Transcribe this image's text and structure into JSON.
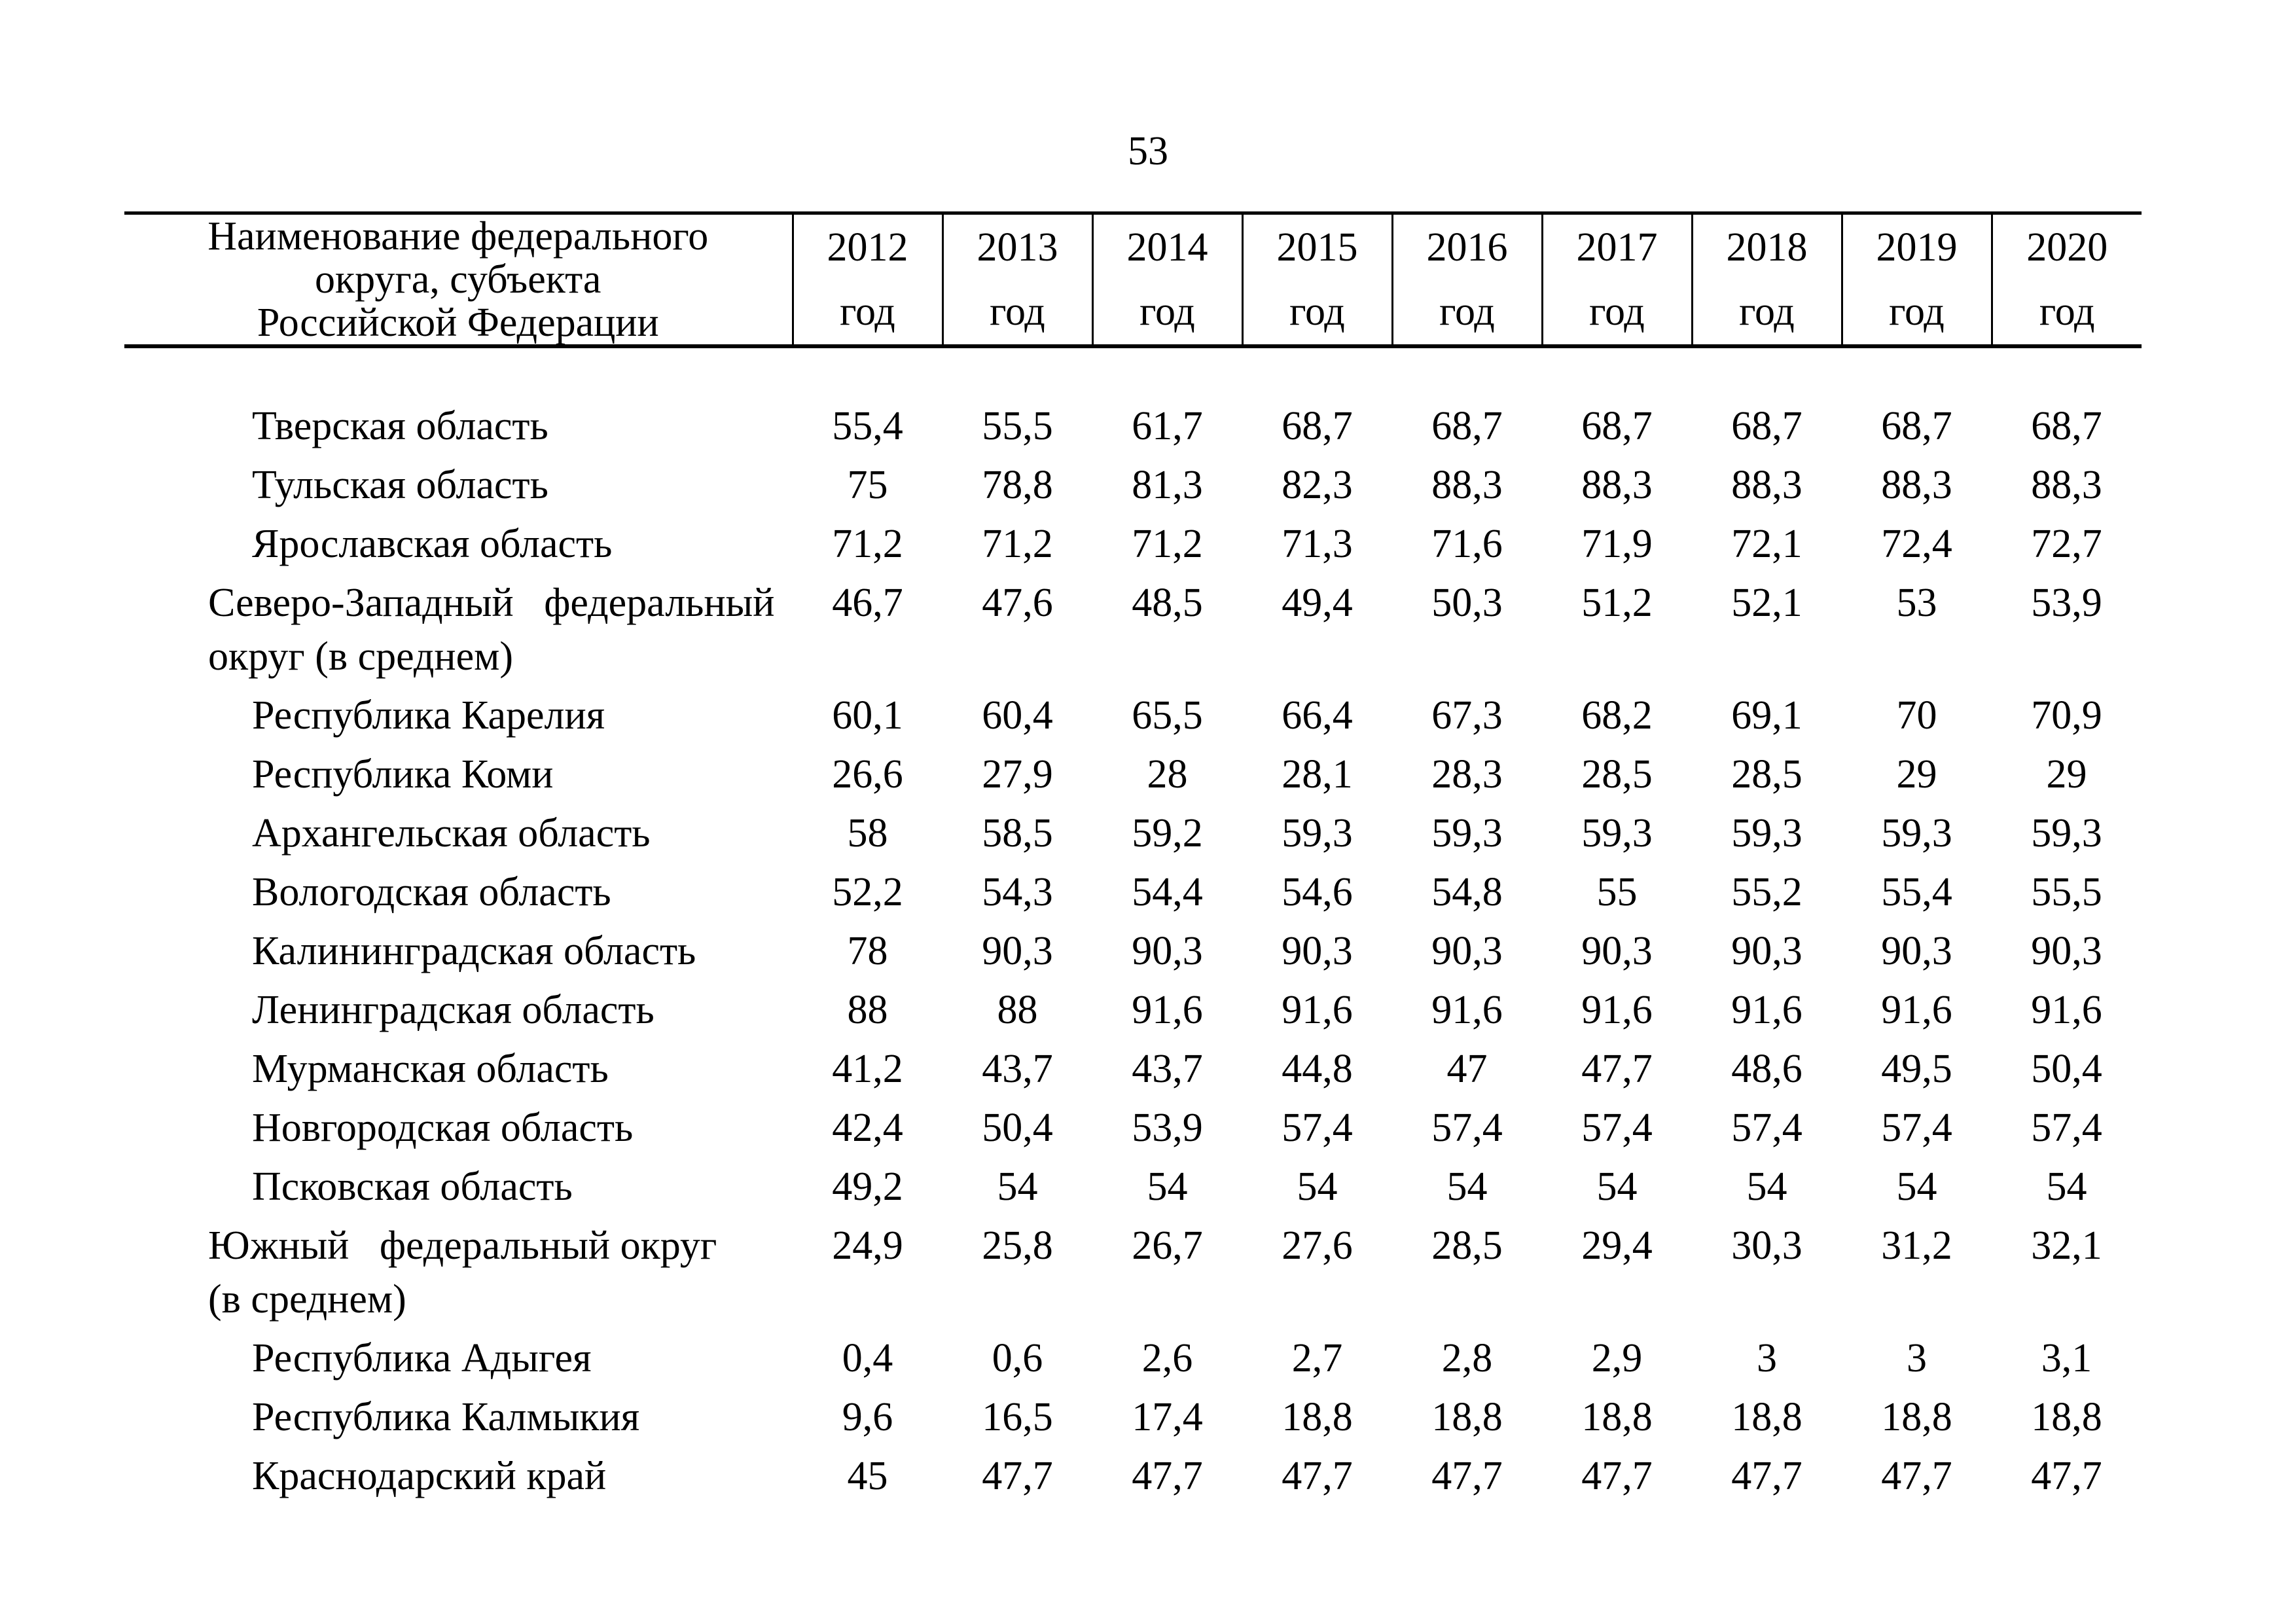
{
  "page": {
    "number": "53"
  },
  "colors": {
    "ink": "#000000",
    "paper": "#ffffff"
  },
  "table": {
    "header": {
      "name_column": "Наименование федерального\nокруга, субъекта\nРоссийской Федерации",
      "year_unit": "год",
      "years": [
        "2012",
        "2013",
        "2014",
        "2015",
        "2016",
        "2017",
        "2018",
        "2019",
        "2020"
      ]
    },
    "rows": [
      {
        "name": "Тверская область",
        "level": "region",
        "values": [
          "55,4",
          "55,5",
          "61,7",
          "68,7",
          "68,7",
          "68,7",
          "68,7",
          "68,7",
          "68,7"
        ]
      },
      {
        "name": "Тульская область",
        "level": "region",
        "values": [
          "75",
          "78,8",
          "81,3",
          "82,3",
          "88,3",
          "88,3",
          "88,3",
          "88,3",
          "88,3"
        ]
      },
      {
        "name": "Ярославская область",
        "level": "region",
        "values": [
          "71,2",
          "71,2",
          "71,2",
          "71,3",
          "71,6",
          "71,9",
          "72,1",
          "72,4",
          "72,7"
        ]
      },
      {
        "name": "Северо-Западный  федеральный\nокруг (в среднем)",
        "level": "district",
        "values": [
          "46,7",
          "47,6",
          "48,5",
          "49,4",
          "50,3",
          "51,2",
          "52,1",
          "53",
          "53,9"
        ]
      },
      {
        "name": "Республика Карелия",
        "level": "region",
        "values": [
          "60,1",
          "60,4",
          "65,5",
          "66,4",
          "67,3",
          "68,2",
          "69,1",
          "70",
          "70,9"
        ]
      },
      {
        "name": "Республика Коми",
        "level": "region",
        "values": [
          "26,6",
          "27,9",
          "28",
          "28,1",
          "28,3",
          "28,5",
          "28,5",
          "29",
          "29"
        ]
      },
      {
        "name": "Архангельская область",
        "level": "region",
        "values": [
          "58",
          "58,5",
          "59,2",
          "59,3",
          "59,3",
          "59,3",
          "59,3",
          "59,3",
          "59,3"
        ]
      },
      {
        "name": "Вологодская область",
        "level": "region",
        "values": [
          "52,2",
          "54,3",
          "54,4",
          "54,6",
          "54,8",
          "55",
          "55,2",
          "55,4",
          "55,5"
        ]
      },
      {
        "name": "Калининградская область",
        "level": "region",
        "values": [
          "78",
          "90,3",
          "90,3",
          "90,3",
          "90,3",
          "90,3",
          "90,3",
          "90,3",
          "90,3"
        ]
      },
      {
        "name": "Ленинградская область",
        "level": "region",
        "values": [
          "88",
          "88",
          "91,6",
          "91,6",
          "91,6",
          "91,6",
          "91,6",
          "91,6",
          "91,6"
        ]
      },
      {
        "name": "Мурманская область",
        "level": "region",
        "values": [
          "41,2",
          "43,7",
          "43,7",
          "44,8",
          "47",
          "47,7",
          "48,6",
          "49,5",
          "50,4"
        ]
      },
      {
        "name": "Новгородская область",
        "level": "region",
        "values": [
          "42,4",
          "50,4",
          "53,9",
          "57,4",
          "57,4",
          "57,4",
          "57,4",
          "57,4",
          "57,4"
        ]
      },
      {
        "name": "Псковская область",
        "level": "region",
        "values": [
          "49,2",
          "54",
          "54",
          "54",
          "54",
          "54",
          "54",
          "54",
          "54"
        ]
      },
      {
        "name": "Южный  федеральный округ\n(в среднем)",
        "level": "district",
        "values": [
          "24,9",
          "25,8",
          "26,7",
          "27,6",
          "28,5",
          "29,4",
          "30,3",
          "31,2",
          "32,1"
        ]
      },
      {
        "name": "Республика Адыгея",
        "level": "region",
        "values": [
          "0,4",
          "0,6",
          "2,6",
          "2,7",
          "2,8",
          "2,9",
          "3",
          "3",
          "3,1"
        ]
      },
      {
        "name": "Республика Калмыкия",
        "level": "region",
        "values": [
          "9,6",
          "16,5",
          "17,4",
          "18,8",
          "18,8",
          "18,8",
          "18,8",
          "18,8",
          "18,8"
        ]
      },
      {
        "name": "Краснодарский край",
        "level": "region",
        "values": [
          "45",
          "47,7",
          "47,7",
          "47,7",
          "47,7",
          "47,7",
          "47,7",
          "47,7",
          "47,7"
        ]
      }
    ]
  }
}
